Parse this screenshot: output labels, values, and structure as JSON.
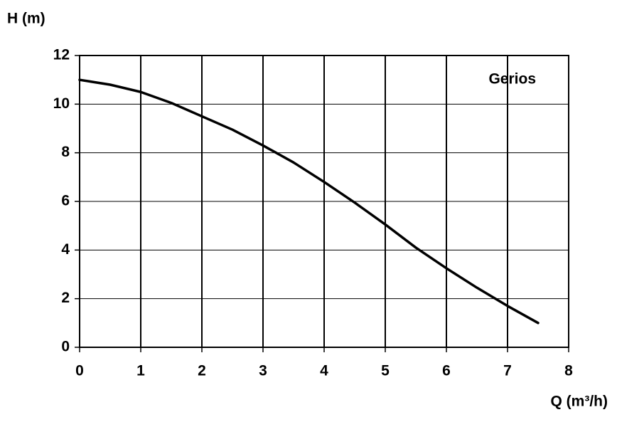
{
  "chart_data": {
    "type": "line",
    "x_label": "Q (m³/h)",
    "y_label": "H (m)",
    "x": [
      0,
      0.5,
      1,
      1.5,
      2,
      2.5,
      3,
      3.5,
      4,
      4.5,
      5,
      5.5,
      6,
      6.5,
      7,
      7.5
    ],
    "series": [
      {
        "name": "Gerios",
        "color": "#000000",
        "values": [
          11,
          10.8,
          10.5,
          10.05,
          9.5,
          8.95,
          8.3,
          7.6,
          6.8,
          5.95,
          5.05,
          4.1,
          3.25,
          2.45,
          1.7,
          1.0
        ]
      }
    ],
    "xlim": [
      0,
      8
    ],
    "xticks": [
      0,
      1,
      2,
      3,
      4,
      5,
      6,
      7,
      8
    ],
    "ylim": [
      0,
      12
    ],
    "yticks": [
      0,
      2,
      4,
      6,
      8,
      10,
      12
    ],
    "grid": true,
    "legend": "top-right"
  }
}
